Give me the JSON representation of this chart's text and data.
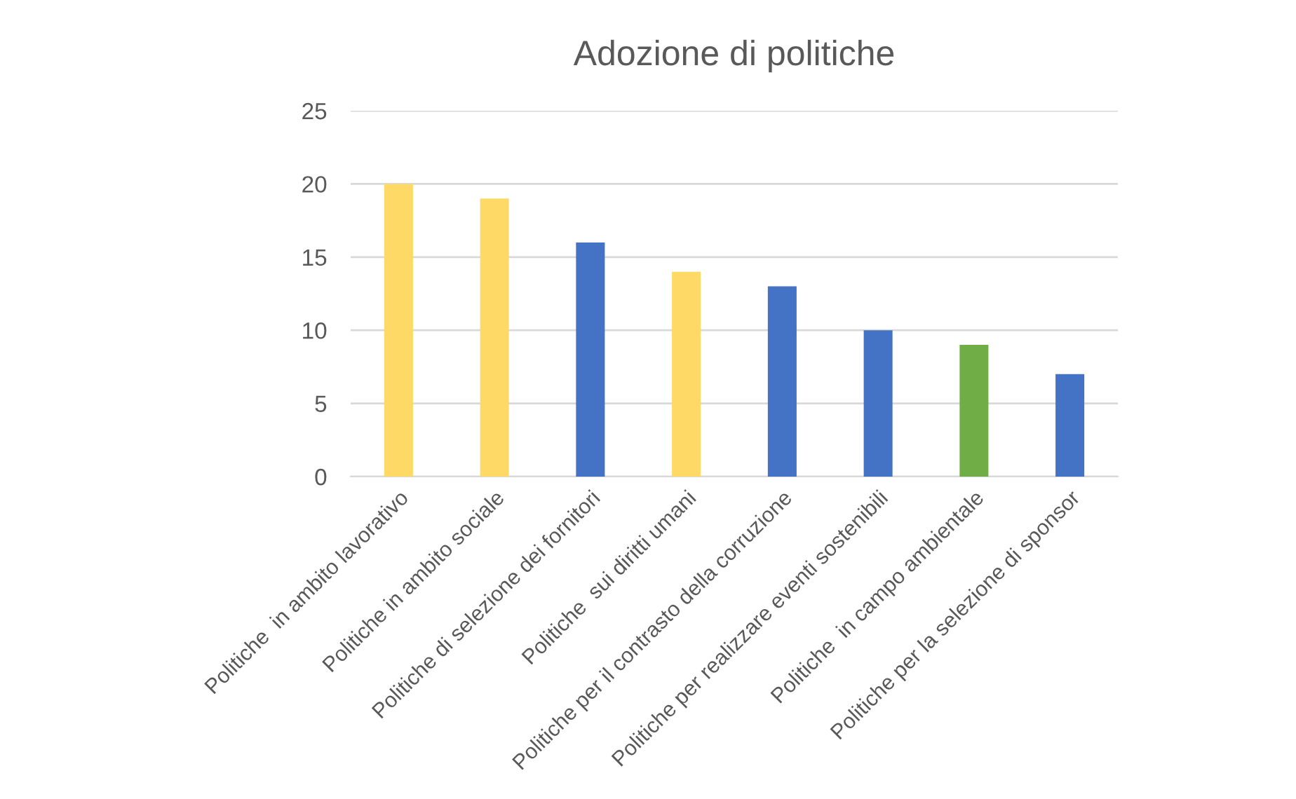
{
  "chart_data": {
    "type": "bar",
    "title": "Adozione di politiche",
    "categories": [
      "Politiche  in ambito lavorativo",
      "Politiche in ambito sociale",
      "Politiche di selezione dei fornitori",
      "Politiche  sui diritti umani",
      "Politiche per il contrasto della corruzione",
      "Politiche per realizzare eventi sostenibili",
      "Politiche  in campo ambientale",
      "Politiche per la selezione di sponsor"
    ],
    "values": [
      20,
      19,
      16,
      14,
      13,
      10,
      9,
      7
    ],
    "colors": [
      "#ffd966",
      "#ffd966",
      "#4472c4",
      "#ffd966",
      "#4472c4",
      "#4472c4",
      "#70ad47",
      "#4472c4"
    ],
    "ylim": [
      0,
      25
    ],
    "yticks": [
      0,
      5,
      10,
      15,
      20,
      25
    ],
    "grid": "y",
    "legend": false
  }
}
